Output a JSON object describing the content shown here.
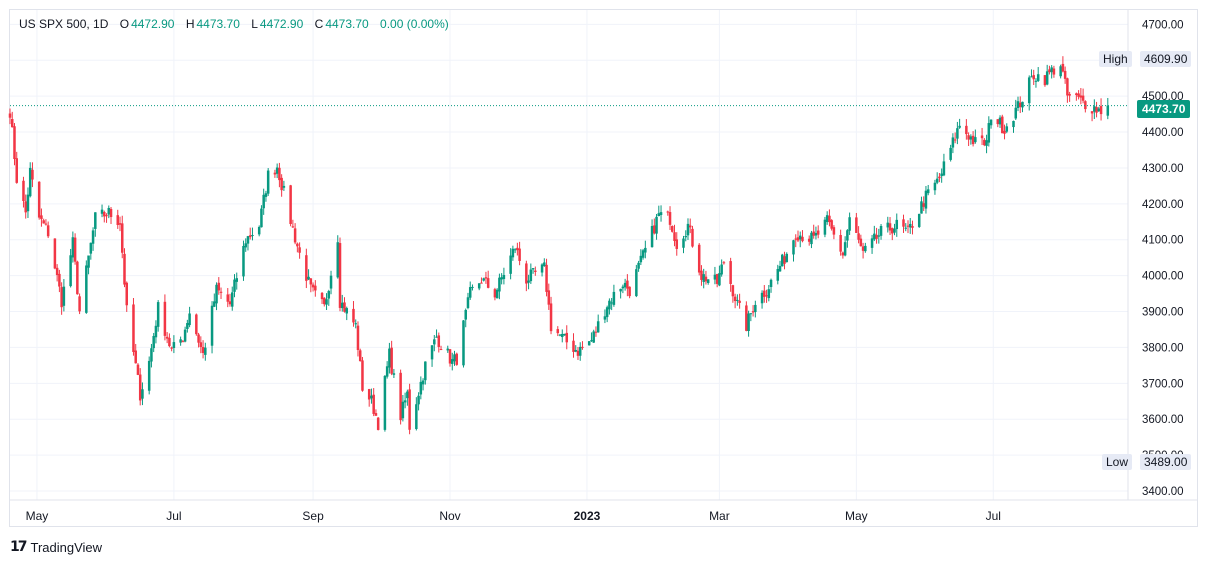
{
  "legend": {
    "symbol": "US SPX 500, 1D",
    "open_label": "O",
    "open": "4472.90",
    "high_label": "H",
    "high": "4473.70",
    "low_label": "L",
    "low": "4472.90",
    "close_label": "C",
    "close": "4473.70",
    "change": "0.00 (0.00%)"
  },
  "tags": {
    "high_name": "High",
    "high_value": "4609.90",
    "low_name": "Low",
    "low_value": "3489.00",
    "last_value": "4473.70"
  },
  "brand": {
    "logo": "17",
    "name": "TradingView"
  },
  "colors": {
    "up": "#089981",
    "down": "#f23645",
    "grid": "#f0f3fa",
    "axis_text": "#131722",
    "last_line": "#089981"
  },
  "chart_data": {
    "type": "candlestick",
    "title": "US SPX 500, 1D",
    "ylim": [
      3375,
      4740
    ],
    "y_ticks": [
      3400,
      3500,
      3600,
      3700,
      3800,
      3900,
      4000,
      4100,
      4200,
      4300,
      4400,
      4500,
      4600,
      4700
    ],
    "y_tick_labels": [
      "3400.00",
      "3500.00",
      "3600.00",
      "3700.00",
      "3800.00",
      "3900.00",
      "4000.00",
      "4100.00",
      "4200.00",
      "4300.00",
      "4400.00",
      "4500.00",
      "4600.00",
      "4700.00"
    ],
    "x_tick_labels": [
      "May",
      "Jul",
      "Sep",
      "Nov",
      "2023",
      "Mar",
      "May",
      "Jul"
    ],
    "x_tick_dates": [
      "2022-05-01",
      "2022-07-01",
      "2022-09-01",
      "2022-11-01",
      "2023-01-01",
      "2023-03-01",
      "2023-05-01",
      "2023-07-01"
    ],
    "x_start": "2022-04-19",
    "x_end": "2023-08-30",
    "last_price": 4473.7,
    "high": 4609.9,
    "low": 3489.0,
    "grid": true,
    "close_path": [
      [
        "2022-04-19",
        4460
      ],
      [
        "2022-04-22",
        4270
      ],
      [
        "2022-04-26",
        4175
      ],
      [
        "2022-04-28",
        4290
      ],
      [
        "2022-05-02",
        4160
      ],
      [
        "2022-05-06",
        4120
      ],
      [
        "2022-05-12",
        3930
      ],
      [
        "2022-05-17",
        4090
      ],
      [
        "2022-05-20",
        3900
      ],
      [
        "2022-05-27",
        4160
      ],
      [
        "2022-06-02",
        4175
      ],
      [
        "2022-06-07",
        4150
      ],
      [
        "2022-06-10",
        3900
      ],
      [
        "2022-06-16",
        3670
      ],
      [
        "2022-06-20",
        3760
      ],
      [
        "2022-06-24",
        3910
      ],
      [
        "2022-06-30",
        3790
      ],
      [
        "2022-07-05",
        3830
      ],
      [
        "2022-07-08",
        3900
      ],
      [
        "2022-07-14",
        3780
      ],
      [
        "2022-07-20",
        3960
      ],
      [
        "2022-07-26",
        3920
      ],
      [
        "2022-08-02",
        4100
      ],
      [
        "2022-08-08",
        4140
      ],
      [
        "2022-08-12",
        4280
      ],
      [
        "2022-08-16",
        4305
      ],
      [
        "2022-08-19",
        4230
      ],
      [
        "2022-08-23",
        4130
      ],
      [
        "2022-08-26",
        4060
      ],
      [
        "2022-08-31",
        3960
      ],
      [
        "2022-09-06",
        3910
      ],
      [
        "2022-09-12",
        4110
      ],
      [
        "2022-09-13",
        3930
      ],
      [
        "2022-09-20",
        3860
      ],
      [
        "2022-09-23",
        3690
      ],
      [
        "2022-09-27",
        3650
      ],
      [
        "2022-09-30",
        3590
      ],
      [
        "2022-10-05",
        3780
      ],
      [
        "2022-10-10",
        3610
      ],
      [
        "2022-10-13",
        3670
      ],
      [
        "2022-10-14",
        3580
      ],
      [
        "2022-10-21",
        3750
      ],
      [
        "2022-10-26",
        3830
      ],
      [
        "2022-11-02",
        3760
      ],
      [
        "2022-11-04",
        3770
      ],
      [
        "2022-11-10",
        3950
      ],
      [
        "2022-11-15",
        3990
      ],
      [
        "2022-11-21",
        3950
      ],
      [
        "2022-11-30",
        4080
      ],
      [
        "2022-12-05",
        3990
      ],
      [
        "2022-12-13",
        4020
      ],
      [
        "2022-12-16",
        3860
      ],
      [
        "2022-12-22",
        3820
      ],
      [
        "2022-12-28",
        3790
      ],
      [
        "2023-01-03",
        3820
      ],
      [
        "2023-01-10",
        3920
      ],
      [
        "2023-01-17",
        3980
      ],
      [
        "2023-01-20",
        3960
      ],
      [
        "2023-01-27",
        4070
      ],
      [
        "2023-02-02",
        4170
      ],
      [
        "2023-02-07",
        4160
      ],
      [
        "2023-02-10",
        4090
      ],
      [
        "2023-02-15",
        4140
      ],
      [
        "2023-02-21",
        4000
      ],
      [
        "2023-02-28",
        3980
      ],
      [
        "2023-03-03",
        4040
      ],
      [
        "2023-03-09",
        3920
      ],
      [
        "2023-03-13",
        3860
      ],
      [
        "2023-03-17",
        3930
      ],
      [
        "2023-03-22",
        3960
      ],
      [
        "2023-03-30",
        4050
      ],
      [
        "2023-04-04",
        4120
      ],
      [
        "2023-04-12",
        4100
      ],
      [
        "2023-04-18",
        4150
      ],
      [
        "2023-04-25",
        4060
      ],
      [
        "2023-04-28",
        4160
      ],
      [
        "2023-05-04",
        4060
      ],
      [
        "2023-05-12",
        4120
      ],
      [
        "2023-05-19",
        4140
      ],
      [
        "2023-05-24",
        4120
      ],
      [
        "2023-06-01",
        4220
      ],
      [
        "2023-06-07",
        4270
      ],
      [
        "2023-06-13",
        4370
      ],
      [
        "2023-06-16",
        4420
      ],
      [
        "2023-06-23",
        4370
      ],
      [
        "2023-06-28",
        4370
      ],
      [
        "2023-06-30",
        4450
      ],
      [
        "2023-07-06",
        4410
      ],
      [
        "2023-07-12",
        4470
      ],
      [
        "2023-07-19",
        4560
      ],
      [
        "2023-07-24",
        4550
      ],
      [
        "2023-07-27",
        4570
      ],
      [
        "2023-07-31",
        4590
      ],
      [
        "2023-08-03",
        4500
      ],
      [
        "2023-08-08",
        4490
      ],
      [
        "2023-08-14",
        4470
      ],
      [
        "2023-08-18",
        4460
      ],
      [
        "2023-08-21",
        4473.7
      ]
    ]
  }
}
